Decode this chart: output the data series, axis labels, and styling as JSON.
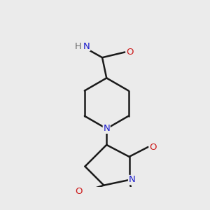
{
  "bg_color": "#ebebeb",
  "atom_colors": {
    "C": "#1a1a1a",
    "N": "#1a1acc",
    "O": "#cc1a1a",
    "Cl": "#208020",
    "H": "#606060"
  },
  "bond_color": "#1a1a1a",
  "bond_width": 1.8
}
